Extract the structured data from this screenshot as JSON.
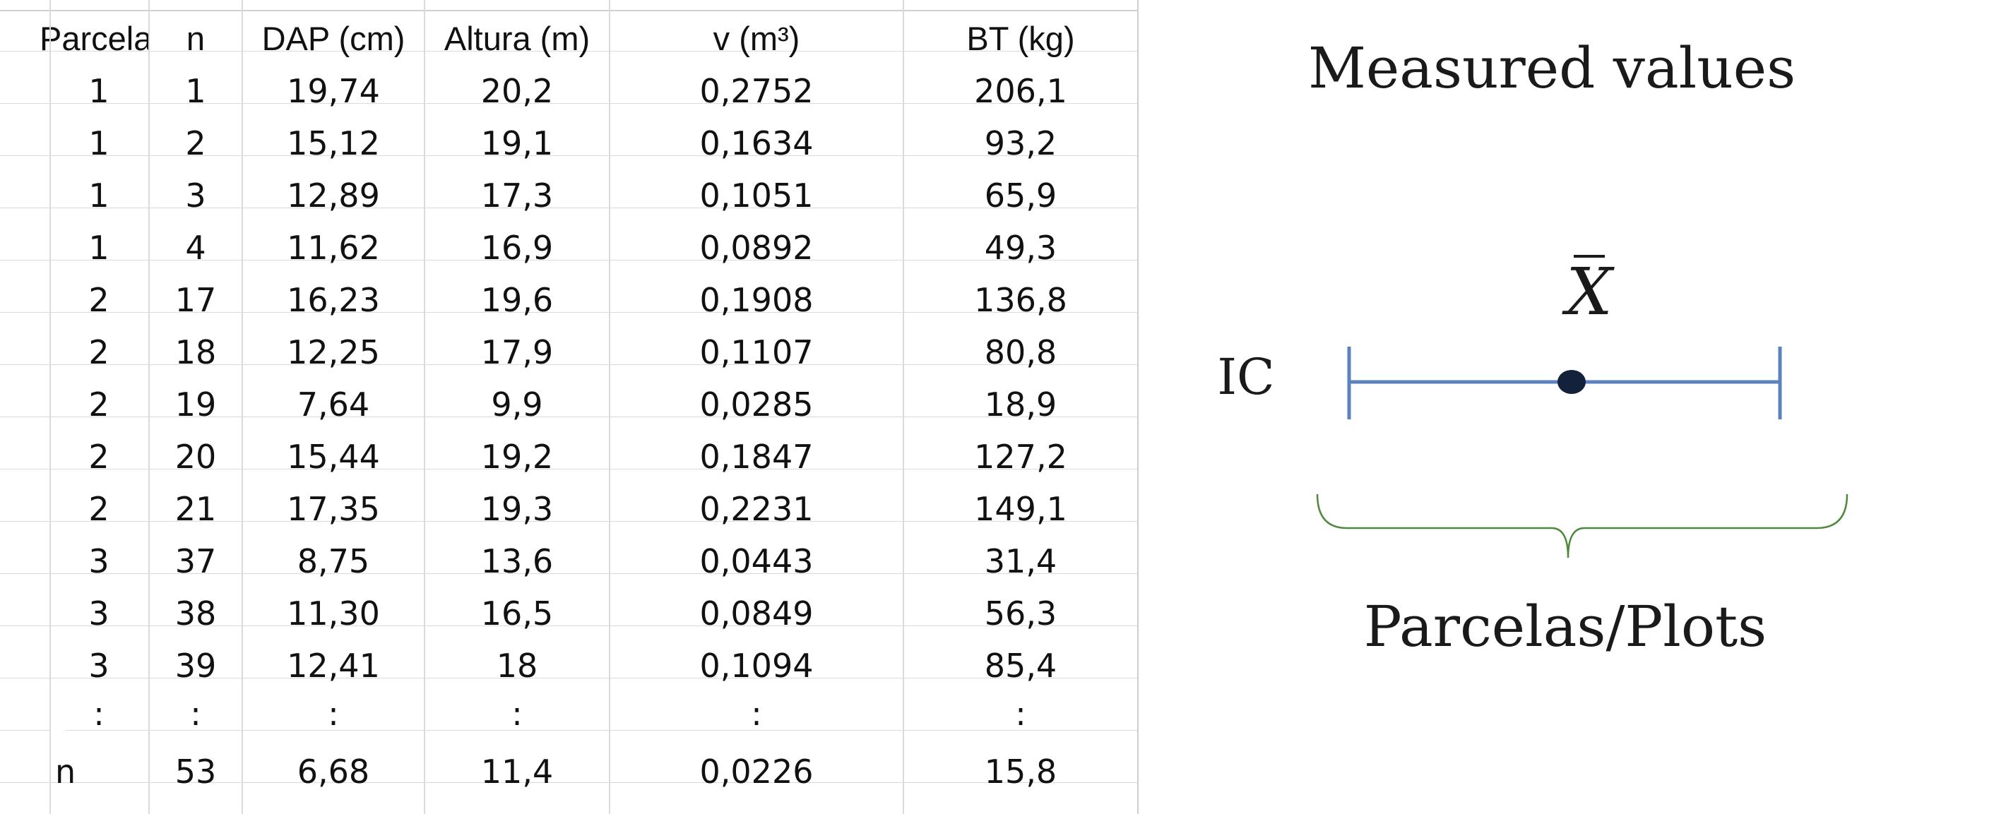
{
  "table": {
    "headers": [
      "Parcela",
      "n",
      "DAP (cm)",
      "Altura (m)",
      "v (m³)",
      "BT (kg)"
    ],
    "rows": [
      [
        "1",
        "1",
        "19,74",
        "20,2",
        "0,2752",
        "206,1"
      ],
      [
        "1",
        "2",
        "15,12",
        "19,1",
        "0,1634",
        "93,2"
      ],
      [
        "1",
        "3",
        "12,89",
        "17,3",
        "0,1051",
        "65,9"
      ],
      [
        "1",
        "4",
        "11,62",
        "16,9",
        "0,0892",
        "49,3"
      ],
      [
        "2",
        "17",
        "16,23",
        "19,6",
        "0,1908",
        "136,8"
      ],
      [
        "2",
        "18",
        "12,25",
        "17,9",
        "0,1107",
        "80,8"
      ],
      [
        "2",
        "19",
        "7,64",
        "9,9",
        "0,0285",
        "18,9"
      ],
      [
        "2",
        "20",
        "15,44",
        "19,2",
        "0,1847",
        "127,2"
      ],
      [
        "2",
        "21",
        "17,35",
        "19,3",
        "0,2231",
        "149,1"
      ],
      [
        "3",
        "37",
        "8,75",
        "13,6",
        "0,0443",
        "31,4"
      ],
      [
        "3",
        "38",
        "11,30",
        "16,5",
        "0,0849",
        "56,3"
      ],
      [
        "3",
        "39",
        "12,41",
        "18",
        "0,1094",
        "85,4"
      ]
    ],
    "ellipsis": [
      ":",
      ":",
      ":",
      ":",
      ":",
      ":"
    ],
    "last_row": [
      "n",
      "53",
      "6,68",
      "11,4",
      "0,0226",
      "15,8"
    ]
  },
  "diagram": {
    "title": "Measured values",
    "mean_symbol": "X",
    "interval_label": "IC",
    "brace_label": "Parcelas/Plots",
    "line_color": "#5b82bf",
    "dot_color": "#14213a",
    "brace_color": "#4f8a3c"
  }
}
